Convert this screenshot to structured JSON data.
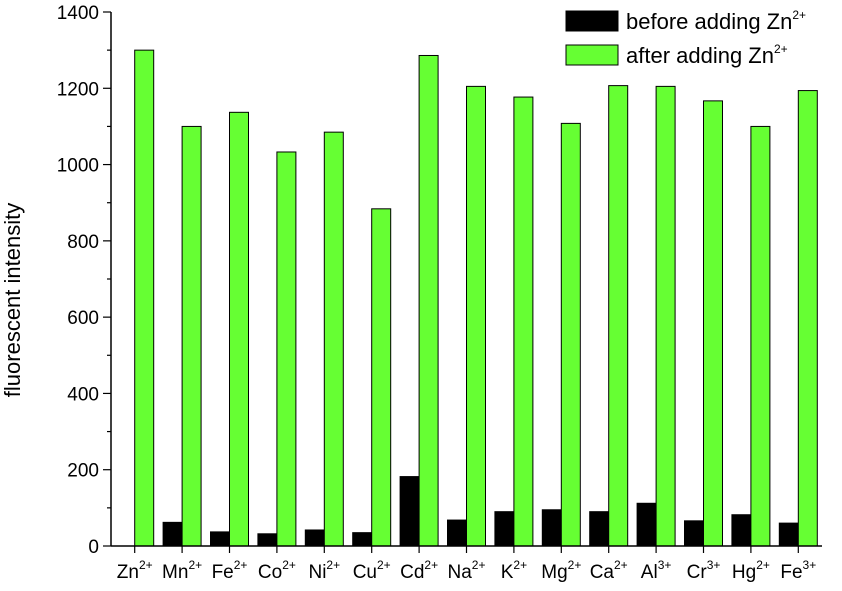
{
  "chart_data": {
    "type": "bar",
    "xlabel": "",
    "ylabel": "fluorescent intensity",
    "ylim": [
      0,
      1400
    ],
    "yticks": [
      0,
      200,
      400,
      600,
      800,
      1000,
      1200,
      1400
    ],
    "grid": false,
    "legend_position": "top-right",
    "categories": [
      {
        "base": "Zn",
        "charge": "2+"
      },
      {
        "base": "Mn",
        "charge": "2+"
      },
      {
        "base": "Fe",
        "charge": "2+"
      },
      {
        "base": "Co",
        "charge": "2+"
      },
      {
        "base": "Ni",
        "charge": "2+"
      },
      {
        "base": "Cu",
        "charge": "2+"
      },
      {
        "base": "Cd",
        "charge": "2+"
      },
      {
        "base": "Na",
        "charge": "2+"
      },
      {
        "base": "K",
        "charge": "2+"
      },
      {
        "base": "Mg",
        "charge": "2+"
      },
      {
        "base": "Ca",
        "charge": "2+"
      },
      {
        "base": "Al",
        "charge": "3+"
      },
      {
        "base": "Cr",
        "charge": "3+"
      },
      {
        "base": "Hg",
        "charge": "2+"
      },
      {
        "base": "Fe",
        "charge": "3+"
      }
    ],
    "series": [
      {
        "name": "before adding Zn",
        "name_sup": "2+",
        "color": "#000000",
        "values": [
          null,
          62,
          37,
          32,
          42,
          35,
          182,
          68,
          90,
          95,
          90,
          112,
          66,
          82,
          60
        ]
      },
      {
        "name": "after adding Zn",
        "name_sup": "2+",
        "color": "#66ff33",
        "values": [
          1300,
          1100,
          1137,
          1033,
          1085,
          884,
          1286,
          1205,
          1177,
          1108,
          1207,
          1205,
          1167,
          1100,
          1194
        ]
      }
    ]
  }
}
